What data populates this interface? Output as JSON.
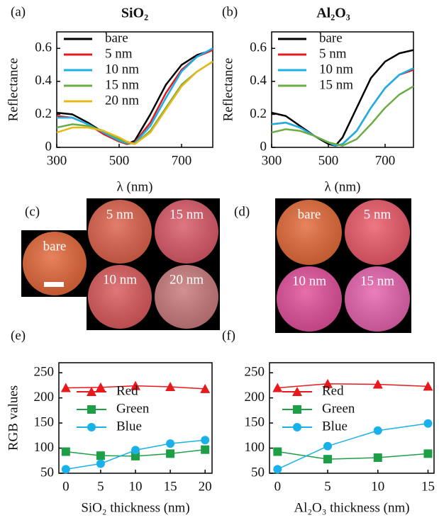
{
  "chart_data": [
    {
      "type": "line",
      "panel": "(a)",
      "title": "SiO₂",
      "x_label": "λ (nm)",
      "y_label": "Reflectance",
      "x": [
        300,
        350,
        400,
        450,
        500,
        525,
        550,
        600,
        650,
        700,
        750,
        800
      ],
      "series": [
        {
          "name": "bare",
          "color": "#000000",
          "values": [
            0.21,
            0.2,
            0.15,
            0.09,
            0.04,
            0.02,
            0.04,
            0.2,
            0.38,
            0.5,
            0.56,
            0.59
          ]
        },
        {
          "name": "5 nm",
          "color": "#e8191d",
          "values": [
            0.19,
            0.18,
            0.14,
            0.08,
            0.035,
            0.02,
            0.03,
            0.15,
            0.33,
            0.47,
            0.55,
            0.59
          ]
        },
        {
          "name": "10 nm",
          "color": "#1ab0e8",
          "values": [
            0.18,
            0.18,
            0.14,
            0.09,
            0.04,
            0.025,
            0.025,
            0.13,
            0.3,
            0.46,
            0.55,
            0.6
          ]
        },
        {
          "name": "15 nm",
          "color": "#6aad45",
          "values": [
            0.12,
            0.14,
            0.13,
            0.1,
            0.05,
            0.03,
            0.02,
            0.1,
            0.24,
            0.38,
            0.46,
            0.52
          ]
        },
        {
          "name": "20 nm",
          "color": "#e8b818",
          "values": [
            0.09,
            0.12,
            0.12,
            0.1,
            0.06,
            0.035,
            0.02,
            0.09,
            0.23,
            0.37,
            0.46,
            0.52
          ]
        }
      ],
      "xlim": [
        300,
        800
      ],
      "xticks": [
        300,
        500,
        700
      ],
      "ylim": [
        0,
        0.7
      ],
      "yticks": [
        0,
        0.2,
        0.4,
        0.6
      ]
    },
    {
      "type": "line",
      "panel": "(b)",
      "title": "Al₂O₃",
      "x_label": "λ (nm)",
      "y_label": "Reflectance",
      "x": [
        300,
        350,
        400,
        450,
        500,
        525,
        550,
        600,
        650,
        700,
        750,
        800
      ],
      "series": [
        {
          "name": "bare",
          "color": "#000000",
          "values": [
            0.21,
            0.19,
            0.13,
            0.07,
            0.02,
            0.01,
            0.06,
            0.24,
            0.42,
            0.52,
            0.57,
            0.59
          ]
        },
        {
          "name": "5 nm",
          "color": "#e8191d",
          "values": [
            0.14,
            0.15,
            0.12,
            0.07,
            0.03,
            0.01,
            0.02,
            0.1,
            0.24,
            0.36,
            0.44,
            0.47
          ]
        },
        {
          "name": "10 nm",
          "color": "#1ab0e8",
          "values": [
            0.14,
            0.15,
            0.12,
            0.07,
            0.03,
            0.01,
            0.02,
            0.1,
            0.24,
            0.36,
            0.44,
            0.48
          ]
        },
        {
          "name": "15 nm",
          "color": "#6aad45",
          "values": [
            0.09,
            0.11,
            0.1,
            0.07,
            0.03,
            0.02,
            0.01,
            0.05,
            0.14,
            0.24,
            0.32,
            0.37
          ]
        }
      ],
      "xlim": [
        300,
        800
      ],
      "xticks": [
        300,
        500,
        700
      ],
      "ylim": [
        0,
        0.7
      ],
      "yticks": [
        0,
        0.2,
        0.4,
        0.6
      ]
    },
    {
      "type": "line",
      "panel": "(e)",
      "x_label": "SiO₂ thickness (nm)",
      "y_label": "RGB values",
      "x": [
        0,
        5,
        10,
        15,
        20
      ],
      "series": [
        {
          "name": "Red",
          "color": "#e8191d",
          "marker": "triangle",
          "values": [
            220,
            221,
            224,
            222,
            218
          ]
        },
        {
          "name": "Green",
          "color": "#1f9e48",
          "marker": "square",
          "values": [
            93,
            85,
            84,
            89,
            97
          ]
        },
        {
          "name": "Blue",
          "color": "#1ab0e8",
          "marker": "circle",
          "values": [
            58,
            69,
            96,
            109,
            116
          ]
        }
      ],
      "xlim": [
        -1,
        21
      ],
      "xticks": [
        0,
        5,
        10,
        15,
        20
      ],
      "ylim": [
        50,
        270
      ],
      "yticks": [
        50,
        100,
        150,
        200,
        250
      ]
    },
    {
      "type": "line",
      "panel": "(f)",
      "x_label": "Al₂O₃ thickness (nm)",
      "x": [
        0,
        5,
        10,
        15
      ],
      "series": [
        {
          "name": "Red",
          "color": "#e8191d",
          "marker": "triangle",
          "values": [
            220,
            228,
            227,
            223
          ]
        },
        {
          "name": "Green",
          "color": "#1f9e48",
          "marker": "square",
          "values": [
            93,
            78,
            81,
            89
          ]
        },
        {
          "name": "Blue",
          "color": "#1ab0e8",
          "marker": "circle",
          "values": [
            58,
            104,
            135,
            149
          ]
        }
      ],
      "xlim": [
        -0.8,
        15.6
      ],
      "xticks": [
        0,
        5,
        10,
        15
      ],
      "ylim": [
        50,
        270
      ],
      "yticks": [
        50,
        100,
        150,
        200,
        250
      ]
    }
  ],
  "photos": [
    {
      "panel": "(c)",
      "tiles": [
        {
          "label": "bare",
          "color": "#e2683a"
        },
        {
          "label": "5 nm",
          "color": "#dc624c"
        },
        {
          "label": "15 nm",
          "color": "#d85a68"
        },
        {
          "label": "10 nm",
          "color": "#d95a5c"
        },
        {
          "label": "20 nm",
          "color": "#c87a7c"
        }
      ]
    },
    {
      "panel": "(d)",
      "tiles": [
        {
          "label": "bare",
          "color": "#e26a3a"
        },
        {
          "label": "5 nm",
          "color": "#ea5a6a"
        },
        {
          "label": "10 nm",
          "color": "#e0509a"
        },
        {
          "label": "15 nm",
          "color": "#e463ac"
        }
      ]
    }
  ]
}
